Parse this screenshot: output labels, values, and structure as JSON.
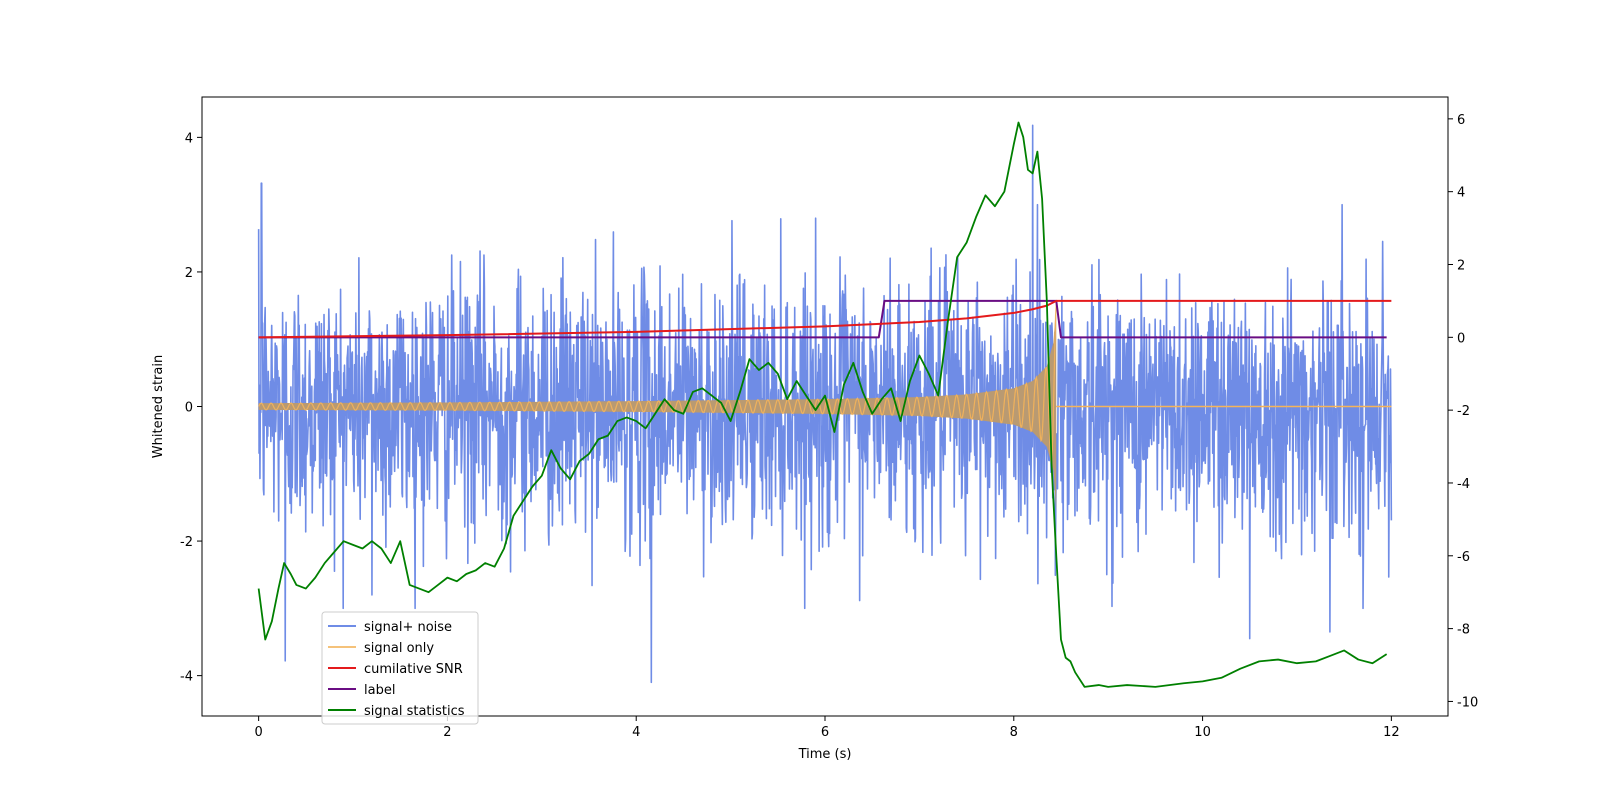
{
  "chart_data": {
    "type": "line",
    "title": "",
    "xlabel": "Time (s)",
    "ylabel": "Whitened strain",
    "ylabel_right": "",
    "xlim": [
      -0.6,
      12.6
    ],
    "ylim": [
      -4.6,
      4.6
    ],
    "ylim_right": [
      -10.4,
      6.6
    ],
    "x_ticks": [
      0,
      2,
      4,
      6,
      8,
      10,
      12
    ],
    "y_ticks": [
      -4,
      -2,
      0,
      2,
      4
    ],
    "y_right_ticks": [
      -10,
      -8,
      -6,
      -4,
      -2,
      0,
      2,
      4,
      6
    ],
    "grid": false,
    "legend_position": "lower-left",
    "series": [
      {
        "name": "signal+ noise",
        "axis": "left",
        "color": "#6f8ce6",
        "description": "whitened noise plus injected chirp, roughly -2.5 to 2.5 with spikes near +/-4",
        "spikes": [
          [
            0.03,
            3.32
          ],
          [
            0.28,
            -3.78
          ],
          [
            1.2,
            -2.8
          ],
          [
            4.16,
            -4.1
          ],
          [
            8.2,
            4.18
          ],
          [
            10.5,
            -3.45
          ],
          [
            11.35,
            -3.35
          ]
        ]
      },
      {
        "name": "signal only",
        "axis": "left",
        "color": "#f5b45a",
        "envelope": {
          "t": [
            0,
            2,
            4,
            6,
            7,
            7.5,
            8,
            8.2,
            8.35,
            8.42,
            8.45
          ],
          "amp": [
            0.05,
            0.06,
            0.08,
            0.11,
            0.14,
            0.18,
            0.27,
            0.38,
            0.6,
            0.95,
            1.55
          ]
        },
        "merger_time": 8.45
      },
      {
        "name": "cumilative SNR",
        "axis": "right",
        "color": "#e41a1c",
        "x": [
          0,
          2,
          4,
          6,
          7,
          7.5,
          8,
          8.2,
          8.35,
          8.45,
          12
        ],
        "values": [
          0.0,
          0.06,
          0.15,
          0.3,
          0.42,
          0.52,
          0.67,
          0.77,
          0.87,
          1.0,
          1.0
        ]
      },
      {
        "name": "label",
        "axis": "right",
        "color": "#6a0d83",
        "x": [
          0,
          6.57,
          6.63,
          8.45,
          8.5,
          11.95
        ],
        "values": [
          0,
          0,
          1,
          1,
          0,
          0
        ]
      },
      {
        "name": "signal statistics",
        "axis": "right",
        "color": "#008000",
        "x": [
          0,
          0.07,
          0.14,
          0.21,
          0.27,
          0.34,
          0.4,
          0.5,
          0.6,
          0.7,
          0.8,
          0.9,
          1.0,
          1.1,
          1.2,
          1.3,
          1.4,
          1.5,
          1.6,
          1.7,
          1.8,
          1.9,
          2.0,
          2.1,
          2.2,
          2.3,
          2.4,
          2.5,
          2.6,
          2.7,
          2.8,
          2.9,
          3.0,
          3.1,
          3.2,
          3.3,
          3.4,
          3.5,
          3.6,
          3.7,
          3.8,
          3.9,
          4.0,
          4.1,
          4.2,
          4.3,
          4.4,
          4.5,
          4.6,
          4.7,
          4.8,
          4.9,
          5.0,
          5.1,
          5.2,
          5.3,
          5.4,
          5.5,
          5.6,
          5.7,
          5.8,
          5.9,
          6.0,
          6.1,
          6.2,
          6.3,
          6.4,
          6.5,
          6.6,
          6.7,
          6.8,
          6.9,
          7.0,
          7.1,
          7.2,
          7.3,
          7.4,
          7.5,
          7.6,
          7.7,
          7.8,
          7.9,
          8.0,
          8.05,
          8.1,
          8.15,
          8.2,
          8.25,
          8.3,
          8.35,
          8.4,
          8.45,
          8.5,
          8.55,
          8.6,
          8.65,
          8.75,
          8.9,
          9.0,
          9.2,
          9.5,
          9.8,
          10.0,
          10.2,
          10.4,
          10.6,
          10.8,
          11.0,
          11.2,
          11.35,
          11.5,
          11.65,
          11.8,
          11.95
        ],
        "values": [
          -6.9,
          -8.3,
          -7.8,
          -6.9,
          -6.2,
          -6.5,
          -6.8,
          -6.9,
          -6.6,
          -6.2,
          -5.9,
          -5.6,
          -5.7,
          -5.8,
          -5.6,
          -5.8,
          -6.2,
          -5.6,
          -6.8,
          -6.9,
          -7.0,
          -6.8,
          -6.6,
          -6.7,
          -6.5,
          -6.4,
          -6.2,
          -6.3,
          -5.8,
          -4.9,
          -4.5,
          -4.1,
          -3.8,
          -3.1,
          -3.6,
          -3.9,
          -3.4,
          -3.2,
          -2.8,
          -2.7,
          -2.3,
          -2.2,
          -2.3,
          -2.5,
          -2.1,
          -1.7,
          -2.0,
          -2.1,
          -1.5,
          -1.4,
          -1.6,
          -1.8,
          -2.3,
          -1.5,
          -0.6,
          -0.9,
          -0.7,
          -1.0,
          -1.7,
          -1.2,
          -1.6,
          -2.0,
          -1.6,
          -2.6,
          -1.3,
          -0.7,
          -1.5,
          -2.1,
          -1.7,
          -1.4,
          -2.3,
          -1.2,
          -0.5,
          -1.0,
          -1.6,
          0.4,
          2.2,
          2.6,
          3.3,
          3.9,
          3.6,
          4.0,
          5.3,
          5.9,
          5.5,
          4.6,
          4.5,
          5.1,
          3.8,
          1.0,
          -3.5,
          -6.0,
          -8.3,
          -8.8,
          -8.9,
          -9.2,
          -9.6,
          -9.55,
          -9.6,
          -9.55,
          -9.6,
          -9.5,
          -9.45,
          -9.35,
          -9.1,
          -8.9,
          -8.85,
          -8.95,
          -8.9,
          -8.75,
          -8.6,
          -8.85,
          -8.95,
          -8.7
        ]
      }
    ]
  }
}
